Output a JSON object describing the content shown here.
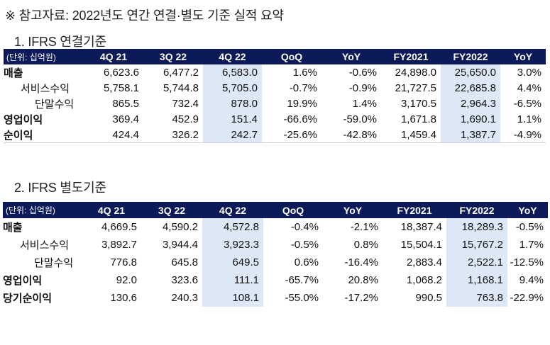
{
  "note": "※ 참고자료: 2022년도 연간 연결·별도 기준 실적 요약",
  "table1": {
    "title": "1. IFRS 연결기준",
    "unit": "(단위: 십억원)",
    "columns": [
      "4Q 21",
      "3Q 22",
      "4Q 22",
      "QoQ",
      "YoY",
      "FY2021",
      "FY2022",
      "YoY"
    ],
    "rows": [
      {
        "label": "매출",
        "values": [
          "6,623.6",
          "6,477.2",
          "6,583.0",
          "1.6%",
          "-0.6%",
          "24,898.0",
          "25,650.0",
          "3.0%"
        ]
      },
      {
        "label": "서비스수익",
        "values": [
          "5,758.1",
          "5,744.8",
          "5,705.0",
          "-0.7%",
          "-0.9%",
          "21,727.5",
          "22,685.8",
          "4.4%"
        ]
      },
      {
        "label": "단말수익",
        "values": [
          "865.5",
          "732.4",
          "878.0",
          "19.9%",
          "1.4%",
          "3,170.5",
          "2,964.3",
          "-6.5%"
        ]
      },
      {
        "label": "영업이익",
        "values": [
          "369.4",
          "452.9",
          "151.4",
          "-66.6%",
          "-59.0%",
          "1,671.8",
          "1,690.1",
          "1.1%"
        ]
      },
      {
        "label": "순이익",
        "values": [
          "424.4",
          "326.2",
          "242.7",
          "-25.6%",
          "-42.8%",
          "1,459.4",
          "1,387.7",
          "-4.9%"
        ]
      }
    ]
  },
  "table2": {
    "title": "2. IFRS 별도기준",
    "unit": "(단위: 십억원)",
    "columns": [
      "4Q 21",
      "3Q 22",
      "4Q 22",
      "QoQ",
      "YoY",
      "FY2021",
      "FY2022",
      "YoY"
    ],
    "rows": [
      {
        "label": "매출",
        "values": [
          "4,669.5",
          "4,590.2",
          "4,572.8",
          "-0.4%",
          "-2.1%",
          "18,387.4",
          "18,289.3",
          "-0.5%"
        ]
      },
      {
        "label": "서비스수익",
        "values": [
          "3,892.7",
          "3,944.4",
          "3,923.3",
          "-0.5%",
          "0.8%",
          "15,504.1",
          "15,767.2",
          "1.7%"
        ]
      },
      {
        "label": "단말수익",
        "values": [
          "776.8",
          "645.8",
          "649.5",
          "0.6%",
          "-16.4%",
          "2,883.4",
          "2,522.1",
          "-12.5%"
        ]
      },
      {
        "label": "영업이익",
        "values": [
          "92.0",
          "323.6",
          "111.1",
          "-65.7%",
          "20.8%",
          "1,068.2",
          "1,168.1",
          "9.4%"
        ]
      },
      {
        "label": "당기순이익",
        "values": [
          "130.6",
          "240.3",
          "108.1",
          "-55.0%",
          "-17.2%",
          "990.5",
          "763.8",
          "-22.9%"
        ]
      }
    ]
  },
  "colors": {
    "header_bg": "#0d1a5a",
    "highlight_bg": "#dde8f6"
  }
}
